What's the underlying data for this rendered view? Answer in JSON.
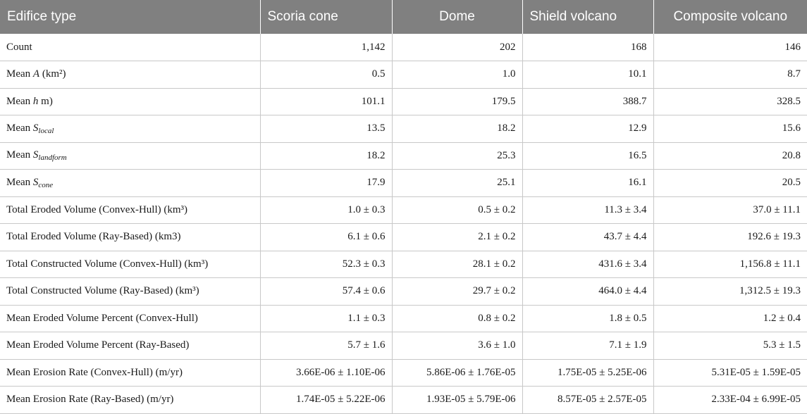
{
  "table": {
    "headers": [
      "Edifice type",
      "Scoria cone",
      "Dome",
      "Shield volcano",
      "Composite volcano"
    ],
    "rows": [
      {
        "label": "Count",
        "values": [
          "1,142",
          "202",
          "168",
          "146"
        ]
      },
      {
        "label_prefix": "Mean ",
        "label_var": "A",
        "label_suffix": " (km²)",
        "values": [
          "0.5",
          "1.0",
          "10.1",
          "8.7"
        ]
      },
      {
        "label_prefix": "Mean ",
        "label_var": "h",
        "label_suffix": " m)",
        "values": [
          "101.1",
          "179.5",
          "388.7",
          "328.5"
        ]
      },
      {
        "label_prefix": "Mean ",
        "label_var": "S",
        "label_sub": "local",
        "values": [
          "13.5",
          "18.2",
          "12.9",
          "15.6"
        ]
      },
      {
        "label_prefix": "Mean ",
        "label_var": "S",
        "label_sub": "landform",
        "values": [
          "18.2",
          "25.3",
          "16.5",
          "20.8"
        ]
      },
      {
        "label_prefix": "Mean ",
        "label_var": "S",
        "label_sub": "cone",
        "values": [
          "17.9",
          "25.1",
          "16.1",
          "20.5"
        ]
      },
      {
        "label": "Total Eroded Volume (Convex-Hull) (km³)",
        "values": [
          "1.0 ± 0.3",
          "0.5 ± 0.2",
          "11.3 ± 3.4",
          "37.0 ± 11.1"
        ]
      },
      {
        "label": "Total Eroded Volume (Ray-Based) (km3)",
        "values": [
          "6.1 ± 0.6",
          "2.1 ± 0.2",
          "43.7 ± 4.4",
          "192.6 ± 19.3"
        ]
      },
      {
        "label": "Total Constructed Volume (Convex-Hull) (km³)",
        "values": [
          "52.3 ± 0.3",
          "28.1 ± 0.2",
          "431.6 ± 3.4",
          "1,156.8 ± 11.1"
        ]
      },
      {
        "label": "Total Constructed Volume (Ray-Based) (km³)",
        "values": [
          "57.4 ± 0.6",
          "29.7 ± 0.2",
          "464.0 ± 4.4",
          "1,312.5 ± 19.3"
        ]
      },
      {
        "label": "Mean Eroded Volume Percent (Convex-Hull)",
        "values": [
          "1.1 ± 0.3",
          "0.8 ± 0.2",
          "1.8 ± 0.5",
          "1.2 ± 0.4"
        ]
      },
      {
        "label": "Mean Eroded Volume Percent (Ray-Based)",
        "values": [
          "5.7 ± 1.6",
          "3.6 ± 1.0",
          "7.1 ± 1.9",
          "5.3 ± 1.5"
        ]
      },
      {
        "label": "Mean Erosion Rate (Convex-Hull) (m/yr)",
        "values": [
          "3.66E-06 ± 1.10E-06",
          "5.86E-06 ± 1.76E-05",
          "1.75E-05 ± 5.25E-06",
          "5.31E-05 ± 1.59E-05"
        ]
      },
      {
        "label": "Mean Erosion Rate (Ray-Based) (m/yr)",
        "values": [
          "1.74E-05 ± 5.22E-06",
          "1.93E-05 ± 5.79E-06",
          "8.57E-05 ± 2.57E-05",
          "2.33E-04 ± 6.99E-05"
        ]
      }
    ]
  },
  "colors": {
    "header_bg": "#808080",
    "header_text": "#ffffff",
    "row_border": "#c8c8c8"
  }
}
